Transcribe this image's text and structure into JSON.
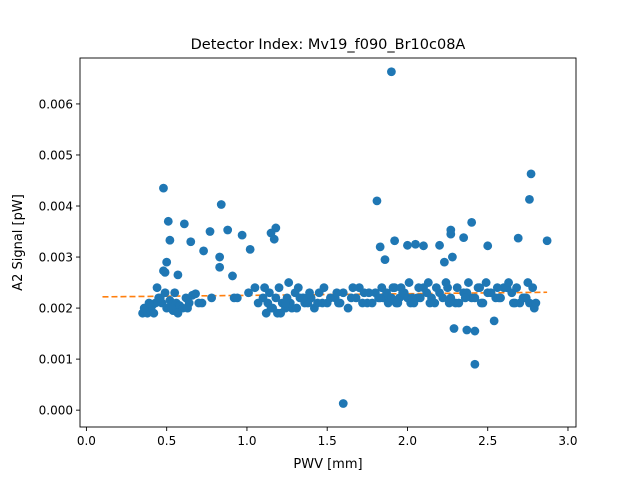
{
  "chart_data": {
    "type": "scatter",
    "title": "Detector Index: Mv19_f090_Br10c08A",
    "xlabel": "PWV [mm]",
    "ylabel": "A2 Signal [pW]",
    "xlim": [
      -0.04,
      3.05
    ],
    "ylim": [
      -0.00033,
      0.0069
    ],
    "xticks": [
      0.0,
      0.5,
      1.0,
      1.5,
      2.0,
      2.5,
      3.0
    ],
    "xtick_labels": [
      "0.0",
      "0.5",
      "1.0",
      "1.5",
      "2.0",
      "2.5",
      "3.0"
    ],
    "yticks": [
      0.0,
      0.001,
      0.002,
      0.003,
      0.004,
      0.005,
      0.006
    ],
    "ytick_labels": [
      "0.000",
      "0.001",
      "0.002",
      "0.003",
      "0.004",
      "0.005",
      "0.006"
    ],
    "grid": false,
    "colors": {
      "points": "#1f77b4",
      "fit": "#ff7f0e"
    },
    "series": [
      {
        "name": "data",
        "kind": "scatter",
        "x": [
          1.9,
          1.6,
          0.48,
          2.77,
          2.76,
          0.84,
          1.81,
          2.4,
          0.51,
          1.18,
          1.15,
          2.27,
          0.97,
          0.77,
          0.88,
          0.61,
          2.35,
          1.83,
          1.92,
          2.0,
          2.05,
          2.1,
          0.52,
          0.65,
          2.27,
          2.5,
          2.87,
          2.69,
          1.17,
          2.2,
          1.02,
          0.73,
          0.83,
          0.83,
          0.91,
          1.86,
          2.23,
          0.49,
          0.5,
          2.28,
          0.57,
          0.48,
          2.42,
          2.37,
          2.54,
          2.29,
          2.42,
          0.35,
          0.37,
          0.38,
          0.4,
          0.41,
          0.43,
          0.45,
          0.47,
          0.5,
          0.52,
          0.54,
          0.56,
          0.58,
          0.6,
          0.62,
          0.64,
          0.66,
          0.68,
          0.72,
          0.78,
          0.92,
          1.05,
          1.1,
          1.13,
          1.16,
          1.19,
          1.22,
          1.25,
          1.28,
          1.3,
          1.33,
          1.36,
          1.4,
          1.45,
          1.5,
          1.55,
          1.6,
          1.65,
          1.7,
          1.75,
          1.8,
          1.85,
          1.88,
          1.92,
          1.95,
          1.98,
          2.02,
          2.06,
          2.1,
          2.15,
          2.2,
          2.25,
          2.3,
          2.35,
          2.4,
          2.45,
          2.5,
          2.55,
          2.6,
          2.65,
          2.7,
          2.74,
          2.78,
          0.36,
          0.39,
          0.42,
          0.46,
          0.49,
          0.53,
          0.57,
          0.63,
          0.7,
          1.07,
          1.12,
          1.15,
          1.18,
          1.21,
          1.24,
          1.27,
          1.31,
          1.35,
          1.38,
          1.42,
          1.47,
          1.52,
          1.58,
          1.63,
          1.68,
          1.73,
          1.78,
          1.83,
          1.87,
          1.9,
          1.94,
          1.97,
          2.0,
          2.04,
          2.08,
          2.12,
          2.17,
          2.22,
          2.27,
          2.32,
          2.37,
          2.42,
          2.47,
          2.52,
          2.57,
          2.62,
          2.67,
          2.72,
          2.76,
          2.79,
          1.14,
          1.2,
          1.26,
          1.32,
          1.39,
          1.48,
          1.56,
          1.66,
          1.76,
          1.84,
          1.91,
          1.96,
          2.01,
          2.07,
          2.13,
          2.18,
          2.24,
          2.31,
          2.38,
          2.44,
          2.49,
          2.56,
          2.63,
          2.68,
          2.75,
          0.44,
          0.55,
          0.94,
          1.01,
          1.11,
          1.24,
          1.35,
          1.44,
          1.57,
          1.72,
          1.82,
          1.93,
          2.03,
          2.14,
          2.26,
          2.36,
          2.46,
          2.58,
          2.66,
          2.73,
          2.8
        ],
        "y": [
          0.00663,
          0.00013,
          0.00435,
          0.00463,
          0.00413,
          0.00403,
          0.0041,
          0.00368,
          0.0037,
          0.00357,
          0.00347,
          0.00353,
          0.00343,
          0.0035,
          0.00353,
          0.00365,
          0.00338,
          0.0032,
          0.00332,
          0.00323,
          0.00325,
          0.00322,
          0.00333,
          0.0033,
          0.00345,
          0.00322,
          0.00332,
          0.00337,
          0.00335,
          0.00323,
          0.00315,
          0.00312,
          0.003,
          0.0028,
          0.00263,
          0.00295,
          0.0029,
          0.0027,
          0.0029,
          0.003,
          0.00265,
          0.00273,
          0.00155,
          0.00157,
          0.00175,
          0.0016,
          0.0009,
          0.0019,
          0.00198,
          0.0019,
          0.00195,
          0.00205,
          0.0021,
          0.0022,
          0.0021,
          0.002,
          0.00215,
          0.00195,
          0.0021,
          0.00205,
          0.002,
          0.0022,
          0.0021,
          0.00225,
          0.00228,
          0.0021,
          0.0022,
          0.0022,
          0.0024,
          0.0022,
          0.0021,
          0.002,
          0.0019,
          0.0021,
          0.0022,
          0.002,
          0.0023,
          0.0022,
          0.0021,
          0.0022,
          0.0023,
          0.0021,
          0.0022,
          0.0023,
          0.0022,
          0.0024,
          0.0021,
          0.0023,
          0.0022,
          0.0021,
          0.0024,
          0.0022,
          0.0023,
          0.0021,
          0.0022,
          0.0024,
          0.0022,
          0.0023,
          0.0024,
          0.0021,
          0.0023,
          0.0022,
          0.0024,
          0.0023,
          0.0022,
          0.0024,
          0.0023,
          0.0021,
          0.0022,
          0.0024,
          0.002,
          0.0021,
          0.0019,
          0.0022,
          0.0023,
          0.002,
          0.0019,
          0.002,
          0.0021,
          0.0021,
          0.0019,
          0.002,
          0.0022,
          0.0019,
          0.002,
          0.0021,
          0.002,
          0.0022,
          0.0021,
          0.002,
          0.0021,
          0.0022,
          0.0021,
          0.002,
          0.0022,
          0.0023,
          0.0021,
          0.0022,
          0.0023,
          0.0022,
          0.0021,
          0.0023,
          0.0022,
          0.0021,
          0.0022,
          0.0023,
          0.0021,
          0.0022,
          0.0022,
          0.0021,
          0.0023,
          0.0022,
          0.0021,
          0.0023,
          0.0022,
          0.0024,
          0.0021,
          0.0022,
          0.0021,
          0.002,
          0.0023,
          0.0024,
          0.0025,
          0.0024,
          0.0023,
          0.0024,
          0.0023,
          0.0024,
          0.0023,
          0.0024,
          0.0024,
          0.0024,
          0.0025,
          0.0024,
          0.0025,
          0.0024,
          0.0025,
          0.0024,
          0.0025,
          0.0024,
          0.0025,
          0.0024,
          0.0025,
          0.0024,
          0.0025,
          0.0024,
          0.0023,
          0.0022,
          0.0023,
          0.0024,
          0.0021,
          0.0022,
          0.0021,
          0.0021,
          0.0021,
          0.0022,
          0.0021,
          0.0022,
          0.0021,
          0.0021,
          0.0022,
          0.0021,
          0.0022,
          0.0021,
          0.0022,
          0.0021
        ]
      },
      {
        "name": "fit",
        "kind": "dashed-line",
        "x": [
          0.1,
          2.87
        ],
        "y": [
          0.00222,
          0.00231
        ]
      }
    ]
  }
}
